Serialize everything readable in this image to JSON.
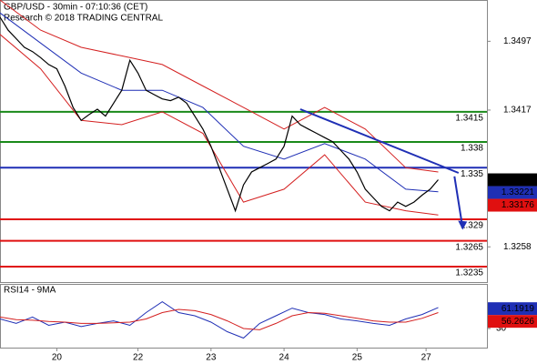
{
  "chart_data": {
    "type": "line",
    "title": "GBP/USD - 30min - 07:10:36 (CET)",
    "subtitle": "Research © 2018 TRADING CENTRAL",
    "x": [
      0,
      1,
      2,
      3,
      4,
      5,
      6,
      7,
      8,
      9,
      10,
      11,
      12,
      13,
      14,
      15,
      16,
      17,
      18,
      19,
      20,
      21,
      22,
      23,
      24,
      25,
      26,
      27,
      28,
      29,
      30,
      31,
      32,
      33,
      34,
      35,
      36,
      37,
      38,
      39,
      40,
      41,
      42,
      43,
      44,
      45,
      46,
      47,
      48,
      49,
      50,
      51,
      52,
      53,
      54
    ],
    "values": [
      1.3525,
      1.351,
      1.35,
      1.349,
      1.3485,
      1.3478,
      1.347,
      1.3465,
      1.3445,
      1.342,
      1.3405,
      1.3412,
      1.3418,
      1.341,
      1.3425,
      1.344,
      1.3475,
      1.346,
      1.344,
      1.3435,
      1.343,
      1.3428,
      1.3432,
      1.3425,
      1.341,
      1.3395,
      1.3375,
      1.335,
      1.3325,
      1.33,
      1.333,
      1.3345,
      1.335,
      1.3355,
      1.336,
      1.3375,
      1.341,
      1.34,
      1.3395,
      1.339,
      1.3385,
      1.338,
      1.337,
      1.336,
      1.3345,
      1.3325,
      1.3315,
      1.3305,
      1.33,
      1.331,
      1.3305,
      1.331,
      1.3318,
      1.3325,
      1.3336
    ],
    "color": "#000000",
    "series": [
      {
        "color": "#1f2fb5",
        "x": [
          0,
          5,
          10,
          15,
          20,
          25,
          30,
          35,
          40,
          45,
          50,
          54
        ],
        "values": [
          1.353,
          1.3495,
          1.346,
          1.344,
          1.344,
          1.342,
          1.3375,
          1.336,
          1.3378,
          1.336,
          1.3325,
          1.3322
        ]
      },
      {
        "color": "#d42020",
        "x": [
          0,
          5,
          10,
          15,
          20,
          25,
          30,
          35,
          40,
          45,
          50,
          54
        ],
        "values": [
          1.3545,
          1.351,
          1.349,
          1.348,
          1.347,
          1.3445,
          1.342,
          1.3395,
          1.342,
          1.3395,
          1.335,
          1.3345
        ]
      },
      {
        "color": "#d42020",
        "x": [
          0,
          5,
          10,
          15,
          20,
          25,
          30,
          35,
          40,
          45,
          50,
          54
        ],
        "values": [
          1.3505,
          1.3465,
          1.3405,
          1.34,
          1.3415,
          1.339,
          1.331,
          1.3325,
          1.3365,
          1.331,
          1.33,
          1.3295
        ]
      }
    ],
    "levels": [
      {
        "value": 1.3415,
        "color": "#1a8a1a"
      },
      {
        "value": 1.338,
        "color": "#1a8a1a"
      },
      {
        "value": 1.335,
        "color": "#1f2fb5"
      },
      {
        "value": 1.329,
        "color": "#e01010"
      },
      {
        "value": 1.3265,
        "color": "#e01010"
      },
      {
        "value": 1.3235,
        "color": "#e01010"
      }
    ],
    "trendline": {
      "x": [
        37,
        56.5
      ],
      "values": [
        1.3418,
        1.3344
      ],
      "color": "#1f2fb5"
    },
    "arrow": {
      "x": [
        56,
        57
      ],
      "values": [
        1.334,
        1.328
      ],
      "color": "#1f2fb5"
    },
    "price_boxes": [
      {
        "value": 1.3336,
        "color": "#000000"
      },
      {
        "value": 1.33221,
        "color": "#1f2fb5"
      },
      {
        "value": 1.33176,
        "color": "#e01010"
      }
    ],
    "xlim": [
      0,
      60
    ],
    "xticks": [
      {
        "value": 7,
        "label": "20"
      },
      {
        "value": 17,
        "label": "22"
      },
      {
        "value": 26,
        "label": "23"
      },
      {
        "value": 35,
        "label": "24"
      },
      {
        "value": 44,
        "label": "25"
      },
      {
        "value": 52.5,
        "label": "27"
      }
    ],
    "ylim": [
      1.3217,
      1.3545
    ],
    "yticks": [
      1.3497,
      1.3417,
      1.3258
    ],
    "rsi": {
      "title": "RSI14 - 9MA",
      "x": [
        0,
        2,
        4,
        6,
        8,
        10,
        12,
        14,
        16,
        18,
        20,
        22,
        24,
        26,
        28,
        30,
        32,
        34,
        36,
        38,
        40,
        42,
        44,
        46,
        48,
        50,
        52,
        54
      ],
      "series": [
        {
          "color": "#1f2fb5",
          "values": [
            45,
            38,
            48,
            35,
            40,
            33,
            38,
            42,
            35,
            55,
            72,
            55,
            50,
            40,
            25,
            15,
            38,
            50,
            62,
            55,
            52,
            45,
            42,
            38,
            35,
            45,
            52,
            63
          ]
        },
        {
          "color": "#d42020",
          "values": [
            48,
            44,
            43,
            41,
            40,
            38,
            38,
            39,
            40,
            45,
            55,
            60,
            58,
            52,
            42,
            30,
            28,
            38,
            50,
            55,
            54,
            50,
            46,
            42,
            40,
            40,
            46,
            55
          ]
        }
      ],
      "ylim": [
        0,
        100
      ],
      "yticks": [
        30
      ],
      "boxes": [
        {
          "value": 61.1919,
          "color": "#1f2fb5"
        },
        {
          "value": 56.2626,
          "color": "#e01010"
        }
      ]
    }
  }
}
